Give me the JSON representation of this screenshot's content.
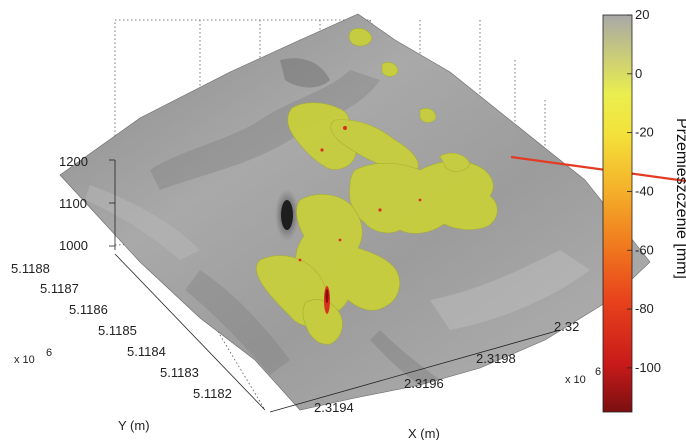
{
  "chart_data": {
    "type": "surface",
    "z_ticks": [
      "1000",
      "1100",
      "1200"
    ],
    "y_ticks": [
      "5.1182",
      "5.1183",
      "5.1184",
      "5.1185",
      "5.1186",
      "5.1187",
      "5.1188"
    ],
    "y_multiplier": "x 10",
    "y_multiplier_exp": "6",
    "y_label": "Y (m)",
    "x_ticks": [
      "2.3194",
      "2.3196",
      "2.3198",
      "2.32"
    ],
    "x_multiplier": "x 10",
    "x_multiplier_exp": "6",
    "x_label": "X (m)",
    "colorbar": {
      "label": "Przemieszczenie [mm]",
      "ticks": [
        "20",
        "0",
        "-20",
        "-40",
        "-60",
        "-80",
        "-100"
      ],
      "range": [
        -115,
        20
      ],
      "colors": [
        "#7a0f10",
        "#c81a1a",
        "#e8421c",
        "#f07a1e",
        "#f4b12a",
        "#f3e23a",
        "#eaee4e",
        "#c9cb7a",
        "#a8a8a8"
      ]
    },
    "surface_colors": {
      "terrain": "#9a9a9a",
      "deformation": "#c8cf3c"
    }
  }
}
